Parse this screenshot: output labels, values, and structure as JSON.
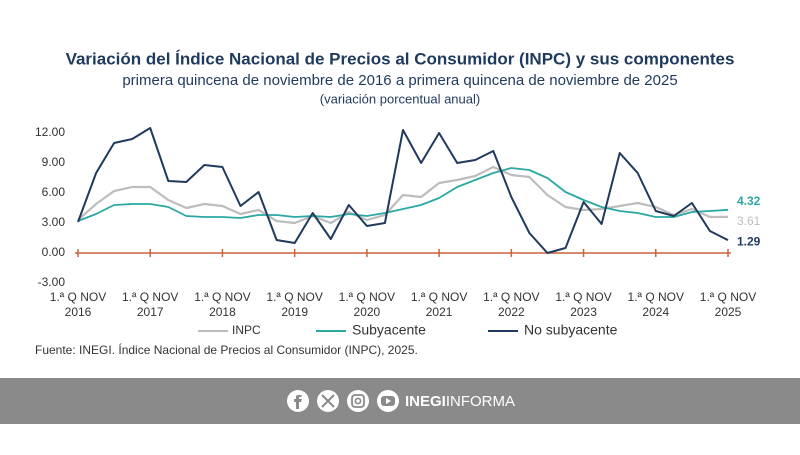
{
  "chart_data": {
    "type": "line",
    "title": "Variación del Índice Nacional de Precios al Consumidor (INPC) y sus componentes",
    "subtitle": "primera quincena de noviembre de 2016 a primera quincena de noviembre de 2025",
    "unit_note": "(variación porcentual anual)",
    "categories": [
      "1.ª Q NOV\n2016",
      null,
      null,
      null,
      "1.ª Q NOV\n2017",
      null,
      null,
      null,
      "1.ª Q NOV\n2018",
      null,
      null,
      null,
      "1.ª Q NOV\n2019",
      null,
      null,
      null,
      "1.ª Q NOV\n2020",
      null,
      null,
      null,
      "1.ª Q NOV\n2021",
      null,
      null,
      null,
      "1.ª Q NOV\n2022",
      null,
      null,
      null,
      "1.ª Q NOV\n2023",
      null,
      null,
      null,
      "1.ª Q NOV\n2024",
      null,
      null,
      null,
      "1.ª Q NOV\n2025"
    ],
    "series": [
      {
        "name": "INPC",
        "color": "#bdbdbd",
        "values": [
          3.3,
          4.9,
          6.2,
          6.6,
          6.6,
          5.3,
          4.5,
          4.9,
          4.7,
          3.9,
          4.3,
          3.2,
          3.0,
          3.7,
          3.0,
          4.1,
          3.3,
          3.8,
          5.8,
          5.6,
          7.0,
          7.3,
          7.7,
          8.6,
          7.8,
          7.6,
          5.8,
          4.6,
          4.3,
          4.4,
          4.7,
          5.0,
          4.6,
          3.8,
          4.4,
          3.6,
          3.61
        ]
      },
      {
        "name": "Subyacente",
        "color": "#2aa8a3",
        "values": [
          3.2,
          3.9,
          4.8,
          4.9,
          4.9,
          4.6,
          3.7,
          3.6,
          3.6,
          3.5,
          3.8,
          3.8,
          3.6,
          3.7,
          3.6,
          3.9,
          3.7,
          4.0,
          4.4,
          4.8,
          5.5,
          6.6,
          7.3,
          8.0,
          8.5,
          8.3,
          7.5,
          6.1,
          5.3,
          4.6,
          4.2,
          4.0,
          3.6,
          3.6,
          4.1,
          4.2,
          4.32
        ]
      },
      {
        "name": "No subyacente",
        "color": "#1f3a5c",
        "values": [
          3.1,
          8.0,
          11.0,
          11.4,
          12.5,
          7.2,
          7.1,
          8.8,
          8.6,
          4.7,
          6.1,
          1.3,
          1.0,
          4.0,
          1.4,
          4.8,
          2.7,
          3.0,
          12.3,
          9.0,
          12.0,
          9.0,
          9.3,
          10.2,
          5.6,
          2.0,
          0.0,
          0.5,
          5.1,
          2.9,
          10.0,
          8.0,
          4.2,
          3.7,
          5.0,
          2.2,
          1.29
        ]
      }
    ],
    "ylim": [
      -3.5,
      13.5
    ],
    "yticks": [
      {
        "value": -3,
        "label": "-3.00"
      },
      {
        "value": 0,
        "label": "0.00"
      },
      {
        "value": 3,
        "label": "3.00"
      },
      {
        "value": 6,
        "label": "6.00"
      },
      {
        "value": 9,
        "label": "9.00"
      },
      {
        "value": 12,
        "label": "12.00"
      }
    ],
    "source": "Fuente: INEGI. Índice Nacional de Precios al Consumidor (INPC), 2025."
  },
  "footer": {
    "brand_bold": "INEGI",
    "brand_light": "INFORMA"
  }
}
